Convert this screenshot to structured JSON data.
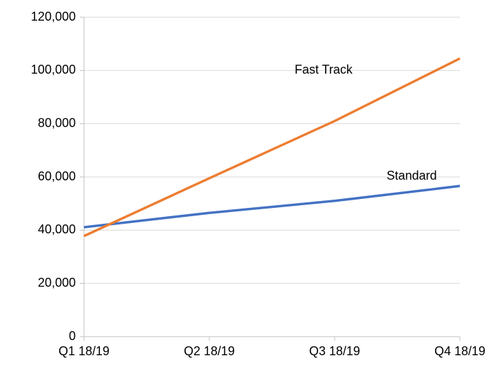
{
  "chart_data": {
    "type": "line",
    "categories": [
      "Q1 18/19",
      "Q2 18/19",
      "Q3 18/19",
      "Q4 18/19"
    ],
    "series": [
      {
        "name": "Standard",
        "color": "#4472c4",
        "values": [
          41100,
          46500,
          51000,
          56600
        ]
      },
      {
        "name": "Fast Track",
        "color": "#ed7d31",
        "values": [
          37800,
          59500,
          81000,
          104500
        ]
      }
    ],
    "ylim": [
      0,
      120000
    ],
    "yticks": [
      0,
      {
        "value": 20000,
        "label": "20,000"
      },
      {
        "value": 40000,
        "label": "40,000"
      },
      {
        "value": 60000,
        "label": "60,000"
      },
      {
        "value": 80000,
        "label": "80,000"
      },
      {
        "value": 100000,
        "label": "100,000"
      },
      {
        "value": 120000,
        "label": "120,000"
      }
    ],
    "grid": true
  }
}
